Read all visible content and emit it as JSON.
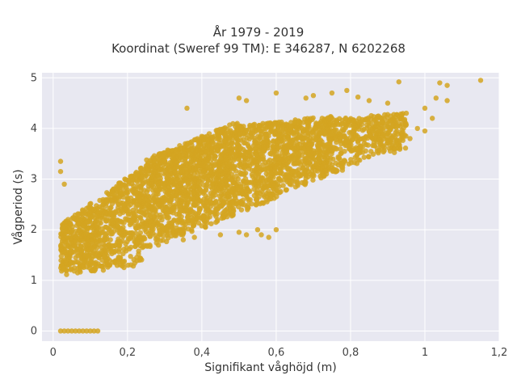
{
  "chart_data": {
    "type": "scatter",
    "title": "År 1979 - 2019",
    "subtitle": "Koordinat (Sweref 99 TM): E 346287, N 6202268",
    "xlabel": "Signifikant våghöjd (m)",
    "ylabel": "Vågperiod (s)",
    "xlim": [
      -0.03,
      1.2
    ],
    "ylim": [
      -0.2,
      5.1
    ],
    "x_ticks": [
      0,
      0.2,
      0.4,
      0.6,
      0.8,
      1,
      1.2
    ],
    "x_tick_labels": [
      "0",
      "0,2",
      "0,4",
      "0,6",
      "0,8",
      "1",
      "1,2"
    ],
    "y_ticks": [
      0,
      1,
      2,
      3,
      4,
      5
    ],
    "y_tick_labels": [
      "0",
      "1",
      "2",
      "3",
      "4",
      "5"
    ],
    "grid": true,
    "marker_color": "#D4A521",
    "plot_background": "#E8E8F1",
    "grid_color": "#FFFFFF",
    "points": [
      [
        0.02,
        0.0
      ],
      [
        0.03,
        0.0
      ],
      [
        0.04,
        0.0
      ],
      [
        0.05,
        0.0
      ],
      [
        0.06,
        0.0
      ],
      [
        0.07,
        0.0
      ],
      [
        0.08,
        0.0
      ],
      [
        0.09,
        0.0
      ],
      [
        0.1,
        0.0
      ],
      [
        0.11,
        0.0
      ],
      [
        0.12,
        0.0
      ],
      [
        0.02,
        3.35
      ],
      [
        0.02,
        3.15
      ],
      [
        0.03,
        2.9
      ],
      [
        1.15,
        4.95
      ],
      [
        1.04,
        4.9
      ],
      [
        1.06,
        4.85
      ],
      [
        0.93,
        4.92
      ],
      [
        1.03,
        4.6
      ],
      [
        1.06,
        4.55
      ],
      [
        1.02,
        4.2
      ],
      [
        1.0,
        4.4
      ],
      [
        0.98,
        4.0
      ],
      [
        1.0,
        3.95
      ],
      [
        0.85,
        4.55
      ],
      [
        0.9,
        4.5
      ],
      [
        0.95,
        4.3
      ],
      [
        0.75,
        4.7
      ],
      [
        0.79,
        4.75
      ],
      [
        0.68,
        4.6
      ],
      [
        0.7,
        4.65
      ],
      [
        0.6,
        4.7
      ],
      [
        0.82,
        4.62
      ],
      [
        0.93,
        4.18
      ],
      [
        0.5,
        4.6
      ],
      [
        0.52,
        4.55
      ],
      [
        0.36,
        4.4
      ],
      [
        0.94,
        3.85
      ],
      [
        0.96,
        3.8
      ],
      [
        0.45,
        1.9
      ],
      [
        0.5,
        1.95
      ],
      [
        0.52,
        1.9
      ],
      [
        0.55,
        2.0
      ],
      [
        0.58,
        1.85
      ],
      [
        0.6,
        2.0
      ],
      [
        0.56,
        1.9
      ],
      [
        0.38,
        1.85
      ],
      [
        0.35,
        1.8
      ]
    ],
    "dense_regions": [
      {
        "x": [
          0.02,
          0.25
        ],
        "y_low": [
          1.1,
          1.3
        ],
        "y_high": [
          2.1,
          3.3
        ],
        "n": 900
      },
      {
        "x": [
          0.25,
          0.5
        ],
        "y_low": [
          1.6,
          2.3
        ],
        "y_high": [
          3.4,
          4.15
        ],
        "n": 1300
      },
      {
        "x": [
          0.5,
          0.75
        ],
        "y_low": [
          2.3,
          3.1
        ],
        "y_high": [
          4.05,
          4.25
        ],
        "n": 1000
      },
      {
        "x": [
          0.75,
          0.95
        ],
        "y_low": [
          3.1,
          3.6
        ],
        "y_high": [
          4.2,
          4.3
        ],
        "n": 400
      }
    ]
  }
}
